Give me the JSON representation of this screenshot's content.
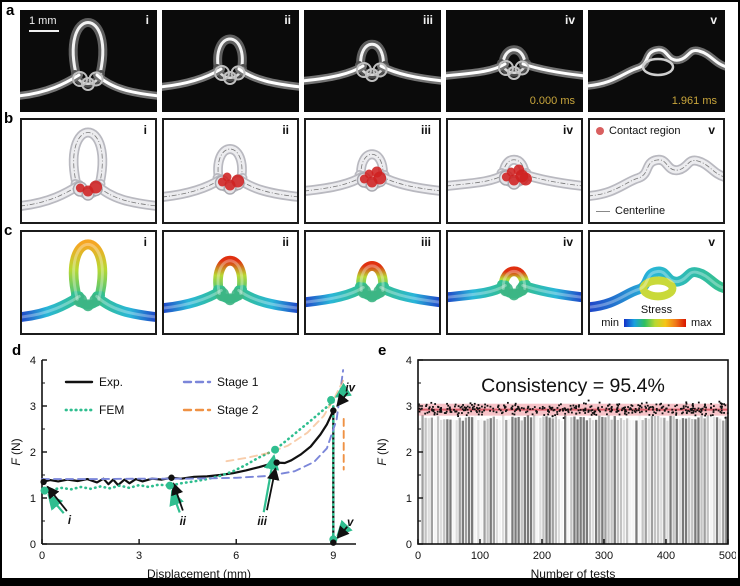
{
  "panels": {
    "a": {
      "label": "a",
      "scale_bar": "1 mm",
      "timestamp_color": "#c9a63c",
      "frames": [
        {
          "id": "i"
        },
        {
          "id": "ii"
        },
        {
          "id": "iii"
        },
        {
          "id": "iv",
          "timestamp": "0.000 ms"
        },
        {
          "id": "v",
          "timestamp": "1.961 ms"
        }
      ]
    },
    "b": {
      "label": "b",
      "contact_legend": "Contact region",
      "centerline_legend": "Centerline",
      "contact_color": "#d95f5f",
      "frames": [
        {
          "id": "i"
        },
        {
          "id": "ii"
        },
        {
          "id": "iii"
        },
        {
          "id": "iv"
        },
        {
          "id": "v"
        }
      ]
    },
    "c": {
      "label": "c",
      "stress": {
        "title": "Stress",
        "min": "min",
        "max": "max"
      },
      "frames": [
        {
          "id": "i"
        },
        {
          "id": "ii"
        },
        {
          "id": "iii"
        },
        {
          "id": "iv"
        },
        {
          "id": "v"
        }
      ]
    },
    "d": {
      "label": "d"
    },
    "e": {
      "label": "e"
    }
  },
  "chart_data": [
    {
      "type": "line",
      "panel": "d",
      "xlabel": "Displacement (mm)",
      "ylabel_italic": "F",
      "ylabel_rest": " (N)",
      "xlim": [
        0,
        9.7
      ],
      "ylim": [
        0,
        4
      ],
      "xticks": [
        0,
        3,
        6,
        9
      ],
      "yticks": [
        0,
        1,
        2,
        3,
        4
      ],
      "legend_position": "top-left",
      "series": [
        {
          "name": "Exp.",
          "color": "#111111",
          "style": "solid",
          "legend": true,
          "points": [
            [
              0,
              1.35
            ],
            [
              0.25,
              1.39
            ],
            [
              0.5,
              1.36
            ],
            [
              0.8,
              1.4
            ],
            [
              1.1,
              1.37
            ],
            [
              1.4,
              1.41
            ],
            [
              1.7,
              1.34
            ],
            [
              1.9,
              1.42
            ],
            [
              2.05,
              1.3
            ],
            [
              2.2,
              1.4
            ],
            [
              2.35,
              1.28
            ],
            [
              2.55,
              1.4
            ],
            [
              2.7,
              1.32
            ],
            [
              2.9,
              1.41
            ],
            [
              3.1,
              1.36
            ],
            [
              3.4,
              1.42
            ],
            [
              3.7,
              1.4
            ],
            [
              4.0,
              1.44
            ],
            [
              4.3,
              1.42
            ],
            [
              4.7,
              1.46
            ],
            [
              5.1,
              1.47
            ],
            [
              5.5,
              1.5
            ],
            [
              5.9,
              1.54
            ],
            [
              6.3,
              1.6
            ],
            [
              6.7,
              1.67
            ],
            [
              7.0,
              1.73
            ],
            [
              7.25,
              1.77
            ],
            [
              7.5,
              1.76
            ],
            [
              7.7,
              1.82
            ],
            [
              8.0,
              1.95
            ],
            [
              8.3,
              2.12
            ],
            [
              8.6,
              2.38
            ],
            [
              8.8,
              2.6
            ],
            [
              9.0,
              2.9
            ],
            [
              9.0,
              0.0
            ]
          ]
        },
        {
          "name": "FEM",
          "color": "#2fbe8f",
          "style": "dotted",
          "legend": true,
          "points": [
            [
              0,
              1.16
            ],
            [
              0.3,
              1.18
            ],
            [
              0.6,
              1.22
            ],
            [
              0.9,
              1.19
            ],
            [
              1.2,
              1.24
            ],
            [
              1.5,
              1.2
            ],
            [
              1.8,
              1.25
            ],
            [
              2.1,
              1.21
            ],
            [
              2.4,
              1.27
            ],
            [
              2.7,
              1.22
            ],
            [
              3.0,
              1.28
            ],
            [
              3.3,
              1.24
            ],
            [
              3.6,
              1.29
            ],
            [
              3.95,
              1.27
            ],
            [
              4.3,
              1.32
            ],
            [
              4.7,
              1.36
            ],
            [
              5.1,
              1.41
            ],
            [
              5.5,
              1.48
            ],
            [
              5.9,
              1.58
            ],
            [
              6.3,
              1.72
            ],
            [
              6.7,
              1.88
            ],
            [
              7.0,
              1.98
            ],
            [
              7.2,
              2.05
            ],
            [
              7.5,
              2.22
            ],
            [
              7.9,
              2.45
            ],
            [
              8.3,
              2.68
            ],
            [
              8.7,
              2.92
            ],
            [
              9.0,
              3.1
            ],
            [
              9.0,
              0.05
            ]
          ]
        },
        {
          "name": "Stage 1",
          "color": "#7b86d9",
          "style": "dashed",
          "legend": true,
          "points": [
            [
              0,
              1.41
            ],
            [
              1.5,
              1.41
            ],
            [
              3.0,
              1.42
            ],
            [
              4.5,
              1.42
            ],
            [
              6.0,
              1.44
            ],
            [
              7.0,
              1.48
            ],
            [
              7.8,
              1.58
            ],
            [
              8.4,
              1.78
            ],
            [
              8.8,
              2.08
            ],
            [
              9.1,
              2.7
            ],
            [
              9.3,
              3.78
            ]
          ]
        },
        {
          "name": "Stage 2",
          "color": "#ef9144",
          "style": "dashed",
          "legend": true,
          "opacity": 0.45,
          "points": [
            [
              5.7,
              1.8
            ],
            [
              6.3,
              1.87
            ],
            [
              7.0,
              1.98
            ],
            [
              7.6,
              2.14
            ],
            [
              8.2,
              2.42
            ],
            [
              8.7,
              2.78
            ],
            [
              9.05,
              3.2
            ],
            [
              9.3,
              3.55
            ]
          ]
        },
        {
          "name": "Stage 2 drop",
          "color": "#ef9144",
          "style": "dashed",
          "legend": false,
          "points": [
            [
              9.32,
              2.72
            ],
            [
              9.32,
              1.62
            ]
          ]
        }
      ],
      "annotations": [
        {
          "label": "i",
          "label_xy": [
            0.85,
            0.52
          ],
          "exp_xy": [
            0.05,
            1.35
          ],
          "fem_xy": [
            0.08,
            1.16
          ]
        },
        {
          "label": "ii",
          "label_xy": [
            4.35,
            0.5
          ],
          "exp_xy": [
            4.0,
            1.44
          ],
          "fem_xy": [
            3.95,
            1.27
          ]
        },
        {
          "label": "iii",
          "label_xy": [
            6.8,
            0.5
          ],
          "exp_xy": [
            7.25,
            1.77
          ],
          "fem_xy": [
            7.2,
            2.05
          ]
        },
        {
          "label": "iv",
          "label_xy": [
            9.52,
            3.4
          ],
          "exp_xy": [
            9.0,
            2.9
          ],
          "fem_xy": [
            8.93,
            3.13
          ]
        },
        {
          "label": "v",
          "label_xy": [
            9.52,
            0.48
          ],
          "exp_xy": [
            9.0,
            0.03
          ],
          "fem_xy": [
            9.0,
            0.1
          ]
        }
      ]
    },
    {
      "type": "bar-scatter",
      "panel": "e",
      "title": "Consistency = 95.4%",
      "xlabel": "Number of tests",
      "ylabel_italic": "F",
      "ylabel_rest": " (N)",
      "xlim": [
        0,
        500
      ],
      "ylim": [
        0,
        4
      ],
      "xticks": [
        0,
        100,
        200,
        300,
        400,
        500
      ],
      "yticks": [
        0,
        1,
        2,
        3,
        4
      ],
      "bars": {
        "count": 100,
        "mean_height": 2.74,
        "jitter": 0.07,
        "colors": [
          "#f5f5f5",
          "#dddddd",
          "#c3c3c3",
          "#9f9f9f",
          "#7a7a7a"
        ]
      },
      "scatter": {
        "count": 400,
        "mean": 2.93,
        "spread": 0.12,
        "min": 2.57,
        "max": 3.3,
        "color": "#111111"
      },
      "band": {
        "from": 2.79,
        "to": 3.05,
        "color": "#ef8791",
        "opacity": 0.5,
        "line": 2.92,
        "line_color": "#d94f5c"
      }
    }
  ]
}
